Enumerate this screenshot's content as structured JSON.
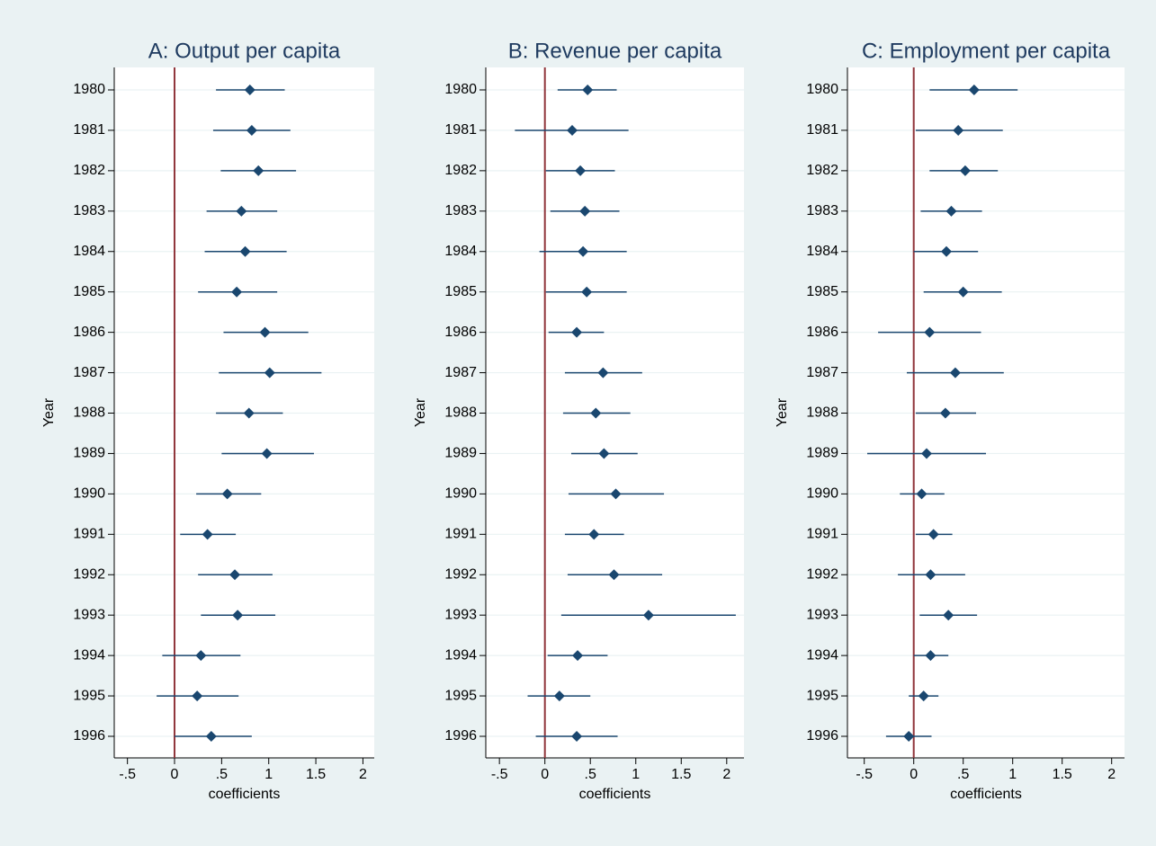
{
  "chart_data": [
    {
      "type": "coefplot",
      "title": "A: Output per capita",
      "y_label": "Year",
      "x_label": "coefficients",
      "categories": [
        "1980",
        "1981",
        "1982",
        "1983",
        "1984",
        "1985",
        "1986",
        "1987",
        "1988",
        "1989",
        "1990",
        "1991",
        "1992",
        "1993",
        "1994",
        "1995",
        "1996"
      ],
      "values": [
        0.8,
        0.82,
        0.89,
        0.71,
        0.75,
        0.66,
        0.96,
        1.01,
        0.79,
        0.98,
        0.56,
        0.35,
        0.64,
        0.67,
        0.28,
        0.24,
        0.39
      ],
      "ci_low": [
        0.44,
        0.41,
        0.49,
        0.34,
        0.32,
        0.25,
        0.52,
        0.47,
        0.44,
        0.5,
        0.23,
        0.06,
        0.25,
        0.28,
        -0.13,
        -0.19,
        0.0
      ],
      "ci_high": [
        1.17,
        1.23,
        1.29,
        1.09,
        1.19,
        1.09,
        1.42,
        1.56,
        1.15,
        1.48,
        0.92,
        0.65,
        1.04,
        1.07,
        0.7,
        0.68,
        0.82
      ],
      "color": "#1a476f",
      "ref_line": 0,
      "ref_color": "#90353b",
      "grid": true,
      "xlim": [
        -0.64,
        2.12
      ],
      "xticks": [
        {
          "value": -0.5,
          "label": "-.5"
        },
        0,
        {
          "value": 0.5,
          "label": ".5"
        },
        1,
        1.5,
        2
      ]
    },
    {
      "type": "coefplot",
      "title": "B: Revenue per capita",
      "y_label": "Year",
      "x_label": "coefficients",
      "categories": [
        "1980",
        "1981",
        "1982",
        "1983",
        "1984",
        "1985",
        "1986",
        "1987",
        "1988",
        "1989",
        "1990",
        "1991",
        "1992",
        "1993",
        "1994",
        "1995",
        "1996"
      ],
      "values": [
        0.47,
        0.3,
        0.39,
        0.44,
        0.42,
        0.46,
        0.35,
        0.64,
        0.56,
        0.65,
        0.78,
        0.54,
        0.76,
        1.14,
        0.36,
        0.16,
        0.35
      ],
      "ci_low": [
        0.14,
        -0.33,
        0.01,
        0.06,
        -0.06,
        0.01,
        0.04,
        0.22,
        0.2,
        0.29,
        0.26,
        0.22,
        0.25,
        0.18,
        0.03,
        -0.19,
        -0.1
      ],
      "ci_high": [
        0.79,
        0.92,
        0.77,
        0.82,
        0.9,
        0.9,
        0.65,
        1.07,
        0.94,
        1.02,
        1.31,
        0.87,
        1.29,
        2.1,
        0.69,
        0.5,
        0.8
      ],
      "color": "#1a476f",
      "ref_line": 0,
      "ref_color": "#90353b",
      "grid": true,
      "xlim": [
        -0.65,
        2.19
      ],
      "xticks": [
        {
          "value": -0.5,
          "label": "-.5"
        },
        0,
        {
          "value": 0.5,
          "label": ".5"
        },
        1,
        1.5,
        2
      ]
    },
    {
      "type": "coefplot",
      "title": "C: Employment per capita",
      "y_label": "Year",
      "x_label": "coefficients",
      "categories": [
        "1980",
        "1981",
        "1982",
        "1983",
        "1984",
        "1985",
        "1986",
        "1987",
        "1988",
        "1989",
        "1990",
        "1991",
        "1992",
        "1993",
        "1994",
        "1995",
        "1996"
      ],
      "values": [
        0.61,
        0.45,
        0.52,
        0.38,
        0.33,
        0.5,
        0.16,
        0.42,
        0.32,
        0.13,
        0.08,
        0.2,
        0.17,
        0.35,
        0.17,
        0.1,
        -0.05
      ],
      "ci_low": [
        0.16,
        0.02,
        0.16,
        0.07,
        0.0,
        0.1,
        -0.36,
        -0.07,
        0.02,
        -0.47,
        -0.14,
        0.02,
        -0.16,
        0.06,
        0.0,
        -0.05,
        -0.28
      ],
      "ci_high": [
        1.05,
        0.9,
        0.85,
        0.69,
        0.65,
        0.89,
        0.68,
        0.91,
        0.63,
        0.73,
        0.31,
        0.39,
        0.52,
        0.64,
        0.35,
        0.25,
        0.18
      ],
      "color": "#1a476f",
      "ref_line": 0,
      "ref_color": "#90353b",
      "grid": true,
      "xlim": [
        -0.67,
        2.13
      ],
      "xticks": [
        {
          "value": -0.5,
          "label": "-.5"
        },
        0,
        {
          "value": 0.5,
          "label": ".5"
        },
        1,
        1.5,
        2
      ]
    }
  ]
}
